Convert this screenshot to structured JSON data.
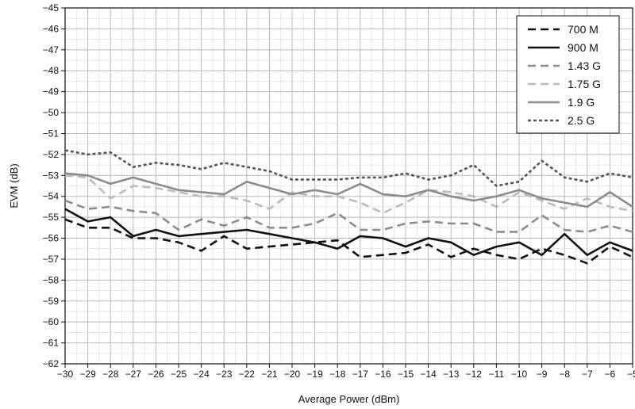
{
  "chart_data": {
    "type": "line",
    "title": "",
    "xlabel": "Average Power (dBm)",
    "ylabel": "EVM (dB)",
    "xlim": [
      -30,
      -5
    ],
    "ylim": [
      -62,
      -45
    ],
    "x_ticks": [
      -30,
      -29,
      -28,
      -27,
      -26,
      -25,
      -24,
      -23,
      -22,
      -21,
      -20,
      -19,
      -18,
      -17,
      -16,
      -15,
      -14,
      -13,
      -12,
      -11,
      -10,
      -9,
      -8,
      -7,
      -6,
      -5
    ],
    "x_tick_labels": [
      "−30",
      "−29",
      "−28",
      "−27",
      "−26",
      "−25",
      "−24",
      "−23",
      "−22",
      "−21",
      "−20",
      "−19",
      "−18",
      "−17",
      "−16",
      "−15",
      "−14",
      "−13",
      "−12",
      "−11",
      "−10",
      "−9",
      "−8",
      "−7",
      "−6",
      "−5"
    ],
    "y_ticks": [
      -45,
      -46,
      -47,
      -48,
      -49,
      -50,
      -51,
      -52,
      -53,
      -54,
      -55,
      -56,
      -57,
      -58,
      -59,
      -60,
      -61,
      -62
    ],
    "y_tick_labels": [
      "−45",
      "−46",
      "−47",
      "−48",
      "−49",
      "−50",
      "−51",
      "−52",
      "−53",
      "−54",
      "−55",
      "−56",
      "−57",
      "−58",
      "−59",
      "−60",
      "−61",
      "−62"
    ],
    "grid": true,
    "minor_grid": true,
    "legend_position": "top-right",
    "x": [
      -30,
      -29,
      -28,
      -27,
      -26,
      -25,
      -24,
      -23,
      -22,
      -21,
      -20,
      -19,
      -18,
      -17,
      -16,
      -15,
      -14,
      -13,
      -12,
      -11,
      -10,
      -9,
      -8,
      -7,
      -6,
      -5
    ],
    "series": [
      {
        "name": "700 M",
        "color": "#111111",
        "dash": "dashed",
        "values": [
          -55.1,
          -55.5,
          -55.5,
          -56.0,
          -56.0,
          -56.2,
          -56.6,
          -55.9,
          -56.5,
          -56.4,
          -56.3,
          -56.2,
          -56.1,
          -56.9,
          -56.8,
          -56.7,
          -56.3,
          -56.9,
          -56.5,
          -56.8,
          -57.0,
          -56.5,
          -56.8,
          -57.2,
          -56.4,
          -56.9
        ]
      },
      {
        "name": "900 M",
        "color": "#111111",
        "dash": "solid",
        "values": [
          -54.6,
          -55.2,
          -55.0,
          -55.9,
          -55.6,
          -55.9,
          -55.8,
          -55.7,
          -55.6,
          -55.8,
          -56.0,
          -56.2,
          -56.5,
          -55.9,
          -56.0,
          -56.4,
          -56.0,
          -56.2,
          -56.8,
          -56.4,
          -56.2,
          -56.8,
          -55.8,
          -56.8,
          -56.2,
          -56.6
        ]
      },
      {
        "name": "1.43 G",
        "color": "#8c8c8c",
        "dash": "dashed",
        "values": [
          -54.2,
          -54.6,
          -54.5,
          -54.7,
          -54.8,
          -55.6,
          -55.1,
          -55.4,
          -55.0,
          -55.5,
          -55.5,
          -55.3,
          -54.8,
          -55.6,
          -55.6,
          -55.3,
          -55.2,
          -55.3,
          -55.3,
          -55.7,
          -55.7,
          -54.9,
          -55.6,
          -55.7,
          -55.4,
          -55.7
        ]
      },
      {
        "name": "1.75 G",
        "color": "#bbbbbb",
        "dash": "dashed",
        "values": [
          -53.0,
          -53.1,
          -54.1,
          -53.5,
          -53.6,
          -53.8,
          -54.0,
          -54.0,
          -54.2,
          -54.6,
          -53.8,
          -54.0,
          -54.0,
          -54.3,
          -54.8,
          -54.3,
          -53.7,
          -53.8,
          -54.0,
          -54.5,
          -53.8,
          -54.2,
          -54.6,
          -54.1,
          -54.5,
          -54.7
        ]
      },
      {
        "name": "1.9 G",
        "color": "#8c8c8c",
        "dash": "solid",
        "values": [
          -52.9,
          -53.0,
          -53.4,
          -53.1,
          -53.4,
          -53.7,
          -53.8,
          -53.9,
          -53.3,
          -53.6,
          -53.9,
          -53.7,
          -53.9,
          -53.4,
          -53.9,
          -54.0,
          -53.7,
          -54.0,
          -54.2,
          -54.0,
          -53.7,
          -54.1,
          -54.3,
          -54.5,
          -53.8,
          -54.5
        ]
      },
      {
        "name": "2.5 G",
        "color": "#555555",
        "dash": "dotted",
        "values": [
          -51.8,
          -52.0,
          -51.9,
          -52.6,
          -52.4,
          -52.5,
          -52.7,
          -52.4,
          -52.6,
          -52.8,
          -53.2,
          -53.2,
          -53.2,
          -53.1,
          -53.1,
          -52.9,
          -53.2,
          -53.0,
          -52.5,
          -53.5,
          -53.3,
          -52.3,
          -53.1,
          -53.3,
          -52.9,
          -53.1
        ]
      }
    ]
  }
}
